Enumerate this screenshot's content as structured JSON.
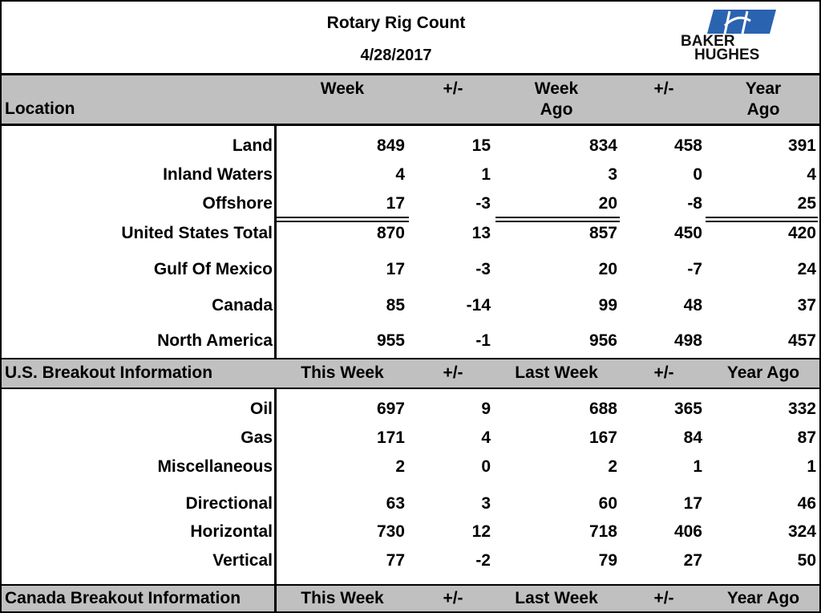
{
  "header": {
    "title": "Rotary Rig Count",
    "date": "4/28/2017",
    "logo": [
      "BAKER",
      "HUGHES"
    ]
  },
  "table": {
    "columns": [
      "Location",
      "Week",
      "+/-",
      "Week Ago",
      "+/-",
      "Year Ago"
    ],
    "rows": [
      [
        "Land",
        849,
        15,
        834,
        458,
        391
      ],
      [
        "Inland Waters",
        4,
        1,
        3,
        0,
        4
      ],
      [
        "Offshore",
        17,
        -3,
        20,
        -8,
        25
      ],
      [
        "United States Total",
        870,
        13,
        857,
        450,
        420
      ],
      [
        "Gulf Of Mexico",
        17,
        -3,
        20,
        -7,
        24
      ],
      [
        "Canada",
        85,
        -14,
        99,
        48,
        37
      ],
      [
        "North America",
        955,
        -1,
        956,
        498,
        457
      ]
    ],
    "sections": [
      {
        "title": "U.S. Breakout Information",
        "columns": [
          "This Week",
          "+/-",
          "Last Week",
          "+/-",
          "Year Ago"
        ],
        "rows": [
          [
            "Oil",
            697,
            9,
            688,
            365,
            332
          ],
          [
            "Gas",
            171,
            4,
            167,
            84,
            87
          ],
          [
            "Miscellaneous",
            2,
            0,
            2,
            1,
            1
          ],
          [
            "Directional",
            63,
            3,
            60,
            17,
            46
          ],
          [
            "Horizontal",
            730,
            12,
            718,
            406,
            324
          ],
          [
            "Vertical",
            77,
            -2,
            79,
            27,
            50
          ]
        ]
      },
      {
        "title": "Canada Breakout Information",
        "columns": [
          "This Week",
          "+/-",
          "Last Week",
          "+/-",
          "Year Ago"
        ]
      }
    ]
  }
}
